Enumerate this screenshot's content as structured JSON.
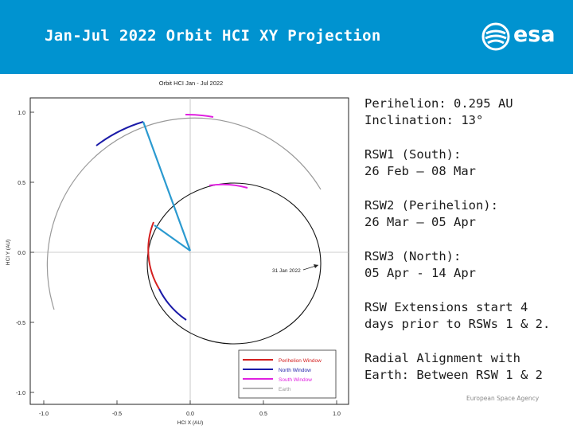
{
  "header": {
    "title": "Jan-Jul 2022 Orbit HCI XY Projection",
    "logo_text": "esa",
    "logo_icon": "esa-swirl-icon",
    "background": "#0093d0"
  },
  "plot": {
    "title": "Orbit HCI Jan - Jul 2022",
    "xlabel": "HCI X (AU)",
    "ylabel": "HCI Y (AU)",
    "x_ticks": [
      "-1.0",
      "-0.5",
      "0.0",
      "0.5",
      "1.0"
    ],
    "y_ticks": [
      "1.0",
      "0.5",
      "0.0",
      "-0.5",
      "-1.0"
    ],
    "annotation": "31 Jan 2022",
    "legend": [
      {
        "label": "Perihelion Window",
        "color": "#d42020"
      },
      {
        "label": "North Window",
        "color": "#1a1aa8"
      },
      {
        "label": "South Window",
        "color": "#e020e0"
      },
      {
        "label": "Earth",
        "color": "#999999"
      }
    ]
  },
  "side": {
    "items": [
      "Perihelion: 0.295 AU\nInclination: 13°",
      "RSW1 (South):\n26 Feb – 08 Mar",
      "RSW2 (Perihelion):\n26 Mar – 05 Apr",
      "RSW3 (North):\n05 Apr - 14 Apr",
      "RSW Extensions start 4\ndays prior to RSWs 1 & 2.",
      "Radial Alignment with\nEarth: Between RSW 1 & 2"
    ]
  },
  "footer": {
    "agency": "European Space Agency"
  }
}
